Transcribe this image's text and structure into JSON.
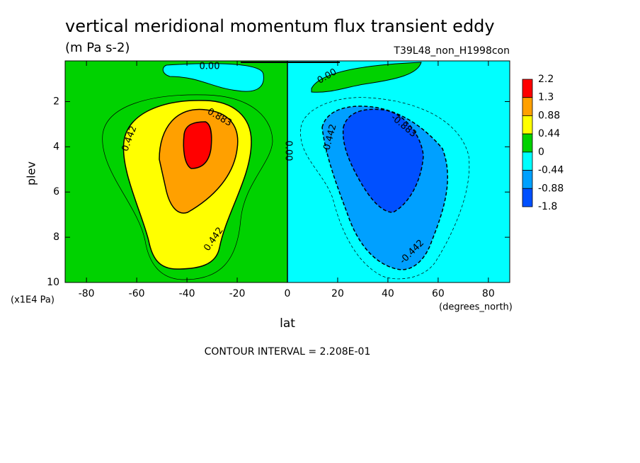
{
  "chart_data": {
    "type": "contour",
    "title": "vertical meridional momentum flux transient eddy",
    "subtitle": "(m Pa s-2)",
    "run_name": "T39L48_non_H1998con",
    "x_label": "lat",
    "x_units": "(degrees_north)",
    "y_label": "plev",
    "y_units": "(x1E4 Pa)",
    "note": "CONTOUR INTERVAL = 2.208E-01",
    "xlim": [
      -88.5,
      88.5
    ],
    "xticks": [
      -80,
      -60,
      -40,
      -20,
      0,
      20,
      40,
      60,
      80
    ],
    "ylim": [
      0.2,
      10
    ],
    "yticks": [
      2,
      4,
      6,
      8,
      10
    ],
    "colorbar": {
      "ticks": [
        2.2,
        1.3,
        0.88,
        0.44,
        0,
        -0.44,
        -0.88,
        -1.8
      ],
      "colors": [
        "#ff0000",
        "#ffa000",
        "#ffff00",
        "#00d200",
        "#00ffff",
        "#00a0ff",
        "#0050ff"
      ]
    },
    "contour_labels": [
      "0.00",
      "0.00",
      "0.883",
      "0.442",
      "0.442",
      "0.00",
      "-0.442",
      "-0.883",
      "-0.442"
    ]
  }
}
